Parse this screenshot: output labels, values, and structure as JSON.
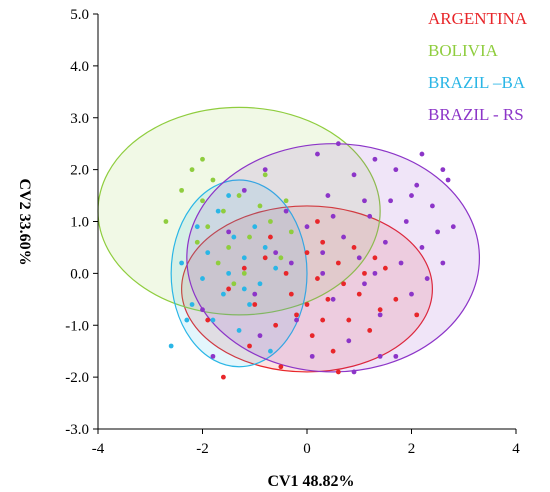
{
  "chart_data": {
    "type": "scatter",
    "xlabel": "CV1 48.82%",
    "ylabel": "CV2 33.60%",
    "xlim": [
      -4,
      4
    ],
    "ylim": [
      -3,
      5
    ],
    "xticks": [
      "-4",
      "-2",
      "0",
      "2",
      "4"
    ],
    "yticks": [
      "5.0",
      "4.0",
      "3.0",
      "2.0",
      "1.0",
      "0.0",
      "-1.0",
      "-2.0",
      "-3.0"
    ],
    "legend_position": "top-right",
    "series": [
      {
        "name": "ARGENTINA",
        "color": "#e8262a",
        "ellipse": {
          "cx": 0.0,
          "cy": -0.3,
          "rx": 2.4,
          "ry": 1.6
        },
        "points": [
          [
            -1.5,
            -0.3
          ],
          [
            -1.2,
            0.1
          ],
          [
            -1.0,
            -0.6
          ],
          [
            -0.8,
            0.3
          ],
          [
            -0.6,
            -1.0
          ],
          [
            -0.4,
            0.0
          ],
          [
            -0.2,
            -0.8
          ],
          [
            0.0,
            0.4
          ],
          [
            0.1,
            -1.2
          ],
          [
            0.2,
            -0.1
          ],
          [
            0.3,
            0.6
          ],
          [
            0.4,
            -0.5
          ],
          [
            0.5,
            -1.5
          ],
          [
            0.6,
            0.2
          ],
          [
            0.7,
            -0.2
          ],
          [
            0.8,
            -0.9
          ],
          [
            0.9,
            0.5
          ],
          [
            1.0,
            -0.4
          ],
          [
            1.1,
            0.0
          ],
          [
            1.2,
            -1.1
          ],
          [
            1.3,
            0.3
          ],
          [
            1.4,
            -0.7
          ],
          [
            1.5,
            0.1
          ],
          [
            -0.5,
            -1.8
          ],
          [
            -1.6,
            -2.0
          ],
          [
            -0.3,
            -0.4
          ],
          [
            0.0,
            -0.6
          ],
          [
            0.3,
            -0.9
          ],
          [
            -1.9,
            -0.9
          ],
          [
            -1.1,
            -1.4
          ],
          [
            0.6,
            -1.9
          ],
          [
            1.7,
            -0.5
          ],
          [
            2.1,
            -0.8
          ],
          [
            -0.7,
            0.7
          ],
          [
            0.2,
            1.0
          ]
        ]
      },
      {
        "name": "BOLIVIA",
        "color": "#8fcd3e",
        "ellipse": {
          "cx": -1.3,
          "cy": 1.2,
          "rx": 2.7,
          "ry": 2.0
        },
        "points": [
          [
            -2.7,
            1.0
          ],
          [
            -2.4,
            1.6
          ],
          [
            -2.2,
            2.0
          ],
          [
            -2.0,
            1.4
          ],
          [
            -1.9,
            0.9
          ],
          [
            -1.8,
            1.8
          ],
          [
            -1.6,
            1.2
          ],
          [
            -1.5,
            0.5
          ],
          [
            -1.3,
            1.5
          ],
          [
            -1.1,
            0.7
          ],
          [
            -0.9,
            1.3
          ],
          [
            -0.7,
            1.0
          ],
          [
            -0.5,
            0.3
          ],
          [
            -0.3,
            0.8
          ],
          [
            -1.7,
            0.2
          ],
          [
            -2.1,
            0.6
          ],
          [
            -0.8,
            1.9
          ],
          [
            -1.2,
            0.0
          ],
          [
            -0.4,
            1.4
          ],
          [
            -1.4,
            -0.2
          ],
          [
            -2.0,
            2.2
          ]
        ]
      },
      {
        "name": "BRAZIL –BA",
        "color": "#2ab6e6",
        "ellipse": {
          "cx": -1.3,
          "cy": 0.0,
          "rx": 1.3,
          "ry": 1.8
        },
        "points": [
          [
            -2.6,
            -1.4
          ],
          [
            -2.4,
            0.2
          ],
          [
            -2.2,
            -0.6
          ],
          [
            -2.1,
            0.9
          ],
          [
            -2.0,
            -0.1
          ],
          [
            -1.9,
            0.4
          ],
          [
            -1.8,
            -0.9
          ],
          [
            -1.7,
            1.2
          ],
          [
            -1.6,
            -0.4
          ],
          [
            -1.5,
            0.0
          ],
          [
            -1.4,
            0.7
          ],
          [
            -1.3,
            -1.1
          ],
          [
            -1.2,
            0.3
          ],
          [
            -1.1,
            -0.6
          ],
          [
            -1.0,
            0.9
          ],
          [
            -0.9,
            -0.2
          ],
          [
            -0.8,
            0.5
          ],
          [
            -0.7,
            -1.5
          ],
          [
            -1.5,
            1.5
          ],
          [
            -2.3,
            -0.9
          ],
          [
            -0.6,
            0.1
          ],
          [
            -1.2,
            -0.3
          ]
        ]
      },
      {
        "name": "BRAZIL - RS",
        "color": "#8c35c8",
        "ellipse": {
          "cx": 0.5,
          "cy": 0.3,
          "rx": 2.8,
          "ry": 2.2
        },
        "points": [
          [
            -2.0,
            -0.7
          ],
          [
            -1.8,
            -1.6
          ],
          [
            -1.5,
            0.8
          ],
          [
            -1.2,
            1.6
          ],
          [
            -1.0,
            -0.4
          ],
          [
            -0.8,
            2.0
          ],
          [
            -0.6,
            0.4
          ],
          [
            -0.4,
            1.2
          ],
          [
            -0.2,
            -0.9
          ],
          [
            0.0,
            0.9
          ],
          [
            0.2,
            2.3
          ],
          [
            0.3,
            0.0
          ],
          [
            0.4,
            1.5
          ],
          [
            0.5,
            -0.5
          ],
          [
            0.6,
            2.5
          ],
          [
            0.7,
            0.7
          ],
          [
            0.8,
            -1.3
          ],
          [
            0.9,
            1.9
          ],
          [
            1.0,
            0.3
          ],
          [
            1.1,
            -0.2
          ],
          [
            1.2,
            1.1
          ],
          [
            1.3,
            2.2
          ],
          [
            1.4,
            -0.8
          ],
          [
            1.5,
            0.6
          ],
          [
            1.6,
            1.4
          ],
          [
            1.7,
            -1.6
          ],
          [
            1.8,
            0.2
          ],
          [
            1.9,
            1.0
          ],
          [
            2.0,
            -0.4
          ],
          [
            2.1,
            1.7
          ],
          [
            2.2,
            0.5
          ],
          [
            2.3,
            -0.1
          ],
          [
            2.4,
            1.3
          ],
          [
            2.5,
            0.8
          ],
          [
            2.6,
            0.2
          ],
          [
            2.7,
            1.8
          ],
          [
            2.8,
            0.9
          ],
          [
            2.2,
            2.3
          ],
          [
            1.7,
            2.0
          ],
          [
            0.9,
            -1.9
          ],
          [
            1.4,
            -1.6
          ],
          [
            0.1,
            -1.6
          ],
          [
            0.5,
            1.1
          ],
          [
            -0.3,
            0.2
          ],
          [
            1.1,
            1.4
          ],
          [
            2.0,
            1.5
          ],
          [
            -0.9,
            -1.2
          ],
          [
            2.6,
            2.0
          ],
          [
            0.3,
            0.4
          ],
          [
            1.3,
            0.0
          ]
        ]
      }
    ]
  }
}
